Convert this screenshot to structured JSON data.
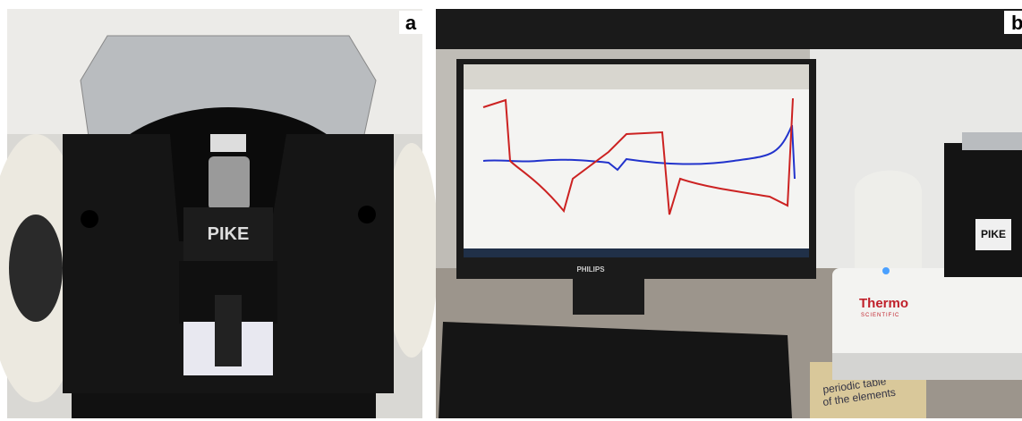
{
  "panels": [
    {
      "label": "a",
      "texts": [
        "PIKE"
      ]
    },
    {
      "label": "b",
      "texts": [
        "PHILIPS",
        "PIKE",
        "Thermo",
        "SCIENTIFIC",
        "periodic table",
        "of the elements"
      ]
    }
  ]
}
